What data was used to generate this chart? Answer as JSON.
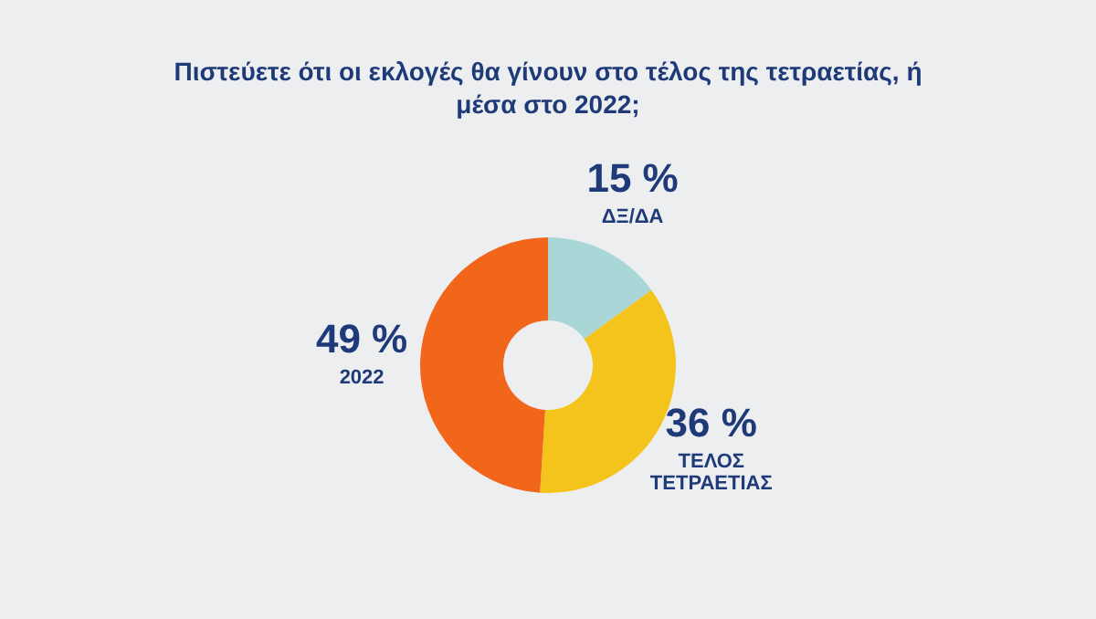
{
  "chart_data": {
    "type": "donut",
    "title": "Πιστεύετε ότι οι εκλογές θα γίνουν στο τέλος της τετραετίας, ή μέσα στο 2022;",
    "categories": [
      "ΔΞ/ΔΑ",
      "ΤΕΛΟΣ ΤΕΤΡΑΕΤΙΑΣ",
      "2022"
    ],
    "values": [
      15,
      36,
      49
    ],
    "colors": [
      "#a9d6d6",
      "#f4c31c",
      "#f2661c"
    ],
    "value_labels": [
      "15 %",
      "36 %",
      "49 %"
    ],
    "legend": false
  }
}
